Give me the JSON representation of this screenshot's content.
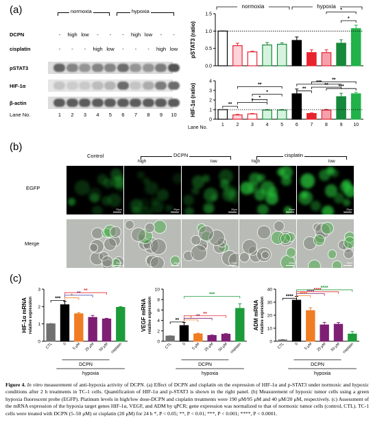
{
  "panel_a": {
    "label": "(a)",
    "normoxia": "normoxia",
    "hypoxia": "hypoxia",
    "rows": [
      {
        "name": "DCPN",
        "cells": [
          "-",
          "high",
          "low",
          "-",
          "-",
          "-",
          "high",
          "low",
          "-",
          "-"
        ]
      },
      {
        "name": "cisplatin",
        "cells": [
          "-",
          "-",
          "-",
          "high",
          "low",
          "-",
          "-",
          "-",
          "high",
          "low"
        ]
      }
    ],
    "blots": [
      "pSTAT3",
      "HIF-1α",
      "β-actin"
    ],
    "lane_label": "Lane No.",
    "lanes": [
      "1",
      "2",
      "3",
      "4",
      "5",
      "6",
      "7",
      "8",
      "9",
      "10"
    ]
  },
  "panel_b": {
    "label": "(b)",
    "col_control": "Control",
    "dcpn": "DCPN",
    "cisplatin": "cisplatin",
    "high": "high",
    "low": "low",
    "row_egfp": "EGFP",
    "row_merge": "Merge",
    "scale": "20μm"
  },
  "panel_c": {
    "label": "(c)",
    "hypoxia": "hypoxia",
    "dcpn": "DCPN"
  },
  "colors": {
    "black": "#000000",
    "pink": "#ff9eb0",
    "red": "#e8232e",
    "green_light": "#a8e6b9",
    "green_dark": "#16893a",
    "orange": "#f07c24",
    "purple": "#7e1f74",
    "blue": "#3a3aa8",
    "green_bright": "#1c9b3a",
    "gray": "#707070"
  },
  "chart_data": [
    {
      "type": "bar",
      "ylabel": "pSTAT3 (ratio)",
      "categories": [
        "1",
        "2",
        "3",
        "4",
        "5",
        "6",
        "7",
        "8",
        "9",
        "10"
      ],
      "values": [
        1.0,
        0.58,
        0.4,
        0.6,
        0.62,
        0.73,
        0.38,
        0.38,
        0.65,
        1.07
      ],
      "ylim": [
        0,
        1.5
      ],
      "yticks": [
        "0.0",
        "0.5",
        "1.0",
        "1.5"
      ],
      "group_labels": [
        "normoxia",
        "hypoxia"
      ],
      "significance": [
        "*",
        "*"
      ]
    },
    {
      "type": "bar",
      "ylabel": "HIF-1α (ratio)",
      "xlabel": "Lane No.",
      "categories": [
        "1",
        "2",
        "3",
        "4",
        "5",
        "6",
        "7",
        "8",
        "9",
        "10"
      ],
      "values": [
        1.0,
        0.45,
        0.55,
        0.95,
        0.95,
        2.65,
        0.6,
        0.95,
        2.35,
        2.65
      ],
      "ylim": [
        0,
        4
      ],
      "yticks": [
        "0",
        "1",
        "2",
        "3",
        "4"
      ],
      "significance": [
        "**",
        "*",
        "*",
        "*",
        "**",
        "**",
        "***",
        "**",
        "***",
        "**",
        "**"
      ]
    },
    {
      "type": "bar",
      "ylabel": "HIF-1α mRNA relative expression",
      "categories": [
        "CTL",
        "0",
        "5 μM",
        "25 μM",
        "50 μM",
        "cisplatin"
      ],
      "values": [
        1.0,
        2.1,
        1.58,
        1.37,
        1.28,
        1.95
      ],
      "ylim": [
        0,
        3
      ],
      "yticks": [
        "0",
        "1",
        "2",
        "3"
      ],
      "group_labels": [
        "DCPN",
        "hypoxia"
      ],
      "significance": [
        "***",
        "*",
        "**",
        "**"
      ]
    },
    {
      "type": "bar",
      "ylabel": "VEGF mRNA relative expression",
      "categories": [
        "CTL",
        "0",
        "5 μM",
        "25 μM",
        "50 μM",
        "cisplatin"
      ],
      "values": [
        1.0,
        3.0,
        1.4,
        1.1,
        1.35,
        6.3
      ],
      "ylim": [
        0,
        10
      ],
      "yticks": [
        "0",
        "2",
        "4",
        "6",
        "8",
        "10"
      ],
      "group_labels": [
        "DCPN",
        "hypoxia"
      ],
      "significance": [
        "***",
        "**",
        "*",
        "**",
        "**"
      ]
    },
    {
      "type": "bar",
      "ylabel": "ADM mRNA relative expression",
      "categories": [
        "CTL",
        "0",
        "5 μM",
        "25 μM",
        "50 μM",
        "cisplatin"
      ],
      "values": [
        1.0,
        31.5,
        23.5,
        12.5,
        13.0,
        5.5
      ],
      "ylim": [
        0,
        40
      ],
      "yticks": [
        "0",
        "10",
        "20",
        "30",
        "40"
      ],
      "group_labels": [
        "DCPN",
        "hypoxia"
      ],
      "significance": [
        "****",
        "****",
        "****",
        "****",
        "****"
      ]
    }
  ],
  "caption": {
    "fig": "Figure 4.",
    "it1": "In vitro",
    "t1": " measurement of anti-hypoxia activity of DCPN. (a) Effect of DCPN and cisplatin on the expression of HIF-1α and p-STAT3 under normoxic and hypoxic conditions after 2 h treatments in TC-1 cells. Quantification of HIF-1α and p-STAT3 is shown in the right panel. (b) Measurement of hypoxic tumor cells using a green hypoxia fluorescent probe (EGFP). Platinum levels in high/low dose-DCPN and cisplatin treatments were 190 μM/95 μM and 40 μM/20 μM, respectively. (c) Assessment of the mRNA expression of the hypoxia target genes HIF-1α, VEGF, and ADM by qPCR; gene expression was normalized to that of normoxic tumor cells (control, CTL). TC-1 cells were treated with DCPN (5–50 μM) or cisplatin (20 μM) for 24 h *, P < 0.05; **, P < 0.01; ***, P < 0.001; ****, P < 0.0001."
  }
}
